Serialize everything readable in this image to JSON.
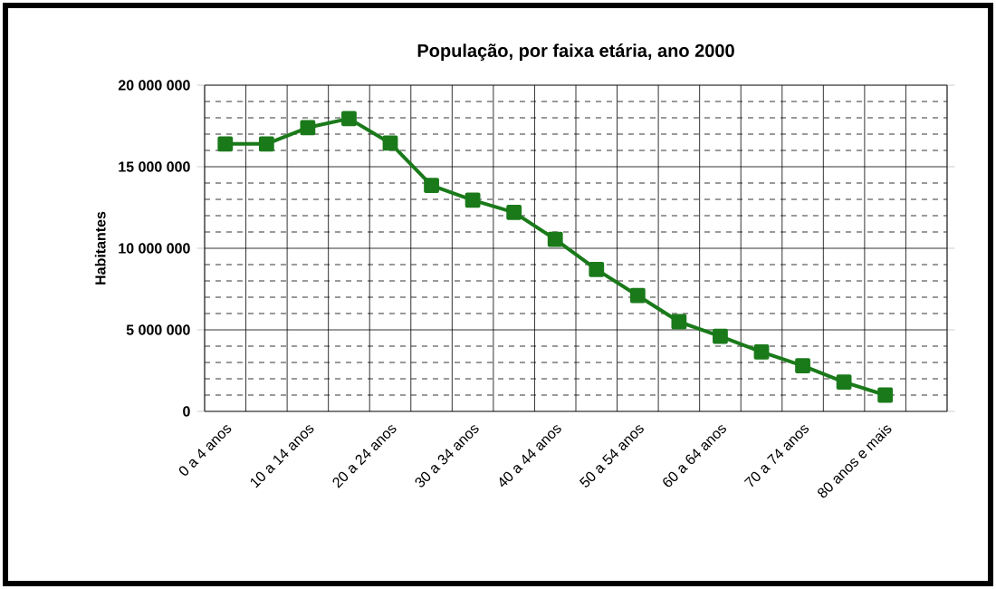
{
  "chart_data": {
    "type": "line",
    "title": "População, por faixa etária, ano 2000",
    "ylabel": "Habitantes",
    "categories": [
      "0 a 4 anos",
      null,
      "10 a 14 anos",
      null,
      "20 a 24 anos",
      null,
      "30 a 34 anos",
      null,
      "40 a 44 anos",
      null,
      "50 a 54 anos",
      null,
      "60 a 64 anos",
      null,
      "70 a 74 anos",
      null,
      "80 anos e mais"
    ],
    "values": [
      16400000,
      16400000,
      17400000,
      17950000,
      16450000,
      13850000,
      12950000,
      12200000,
      10550000,
      8700000,
      7100000,
      5500000,
      4600000,
      3650000,
      2800000,
      1800000,
      1000000
    ],
    "color": "#1a7a1a",
    "marker": "square",
    "line_style": "solid",
    "grid": true,
    "ylim": [
      0,
      20000000
    ],
    "yticks": [
      {
        "value": 0,
        "label": "0"
      },
      {
        "value": 1000000,
        "label": null
      },
      {
        "value": 2000000,
        "label": null
      },
      {
        "value": 3000000,
        "label": null
      },
      {
        "value": 4000000,
        "label": null
      },
      {
        "value": 5000000,
        "label": "5 000 000"
      },
      {
        "value": 6000000,
        "label": null
      },
      {
        "value": 7000000,
        "label": null
      },
      {
        "value": 8000000,
        "label": null
      },
      {
        "value": 9000000,
        "label": null
      },
      {
        "value": 10000000,
        "label": "10 000 000"
      },
      {
        "value": 11000000,
        "label": null
      },
      {
        "value": 12000000,
        "label": null
      },
      {
        "value": 13000000,
        "label": null
      },
      {
        "value": 14000000,
        "label": null
      },
      {
        "value": 15000000,
        "label": "15 000 000"
      },
      {
        "value": 16000000,
        "label": null
      },
      {
        "value": 17000000,
        "label": null
      },
      {
        "value": 18000000,
        "label": null
      },
      {
        "value": 19000000,
        "label": null
      },
      {
        "value": 20000000,
        "label": "20 000 000"
      }
    ]
  }
}
